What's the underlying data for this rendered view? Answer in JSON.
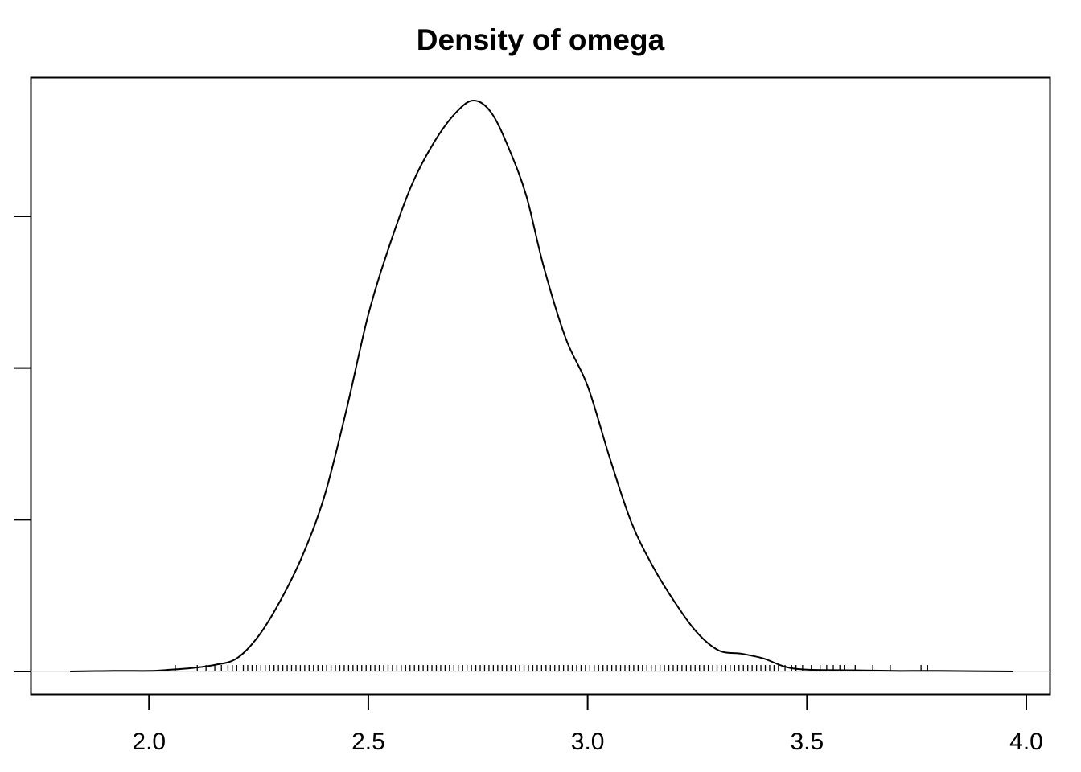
{
  "chart_data": {
    "type": "line",
    "title": "Density of omega",
    "xlabel": "",
    "ylabel": "",
    "xlim": [
      1.73,
      4.055
    ],
    "ylim": [
      0,
      1.06
    ],
    "x_ticks": [
      2.0,
      2.5,
      3.0,
      3.5,
      4.0
    ],
    "x_tick_labels": [
      "2.0",
      "2.5",
      "3.0",
      "3.5",
      "4.0"
    ],
    "y_ticks": [
      0,
      0.25,
      0.5,
      0.75
    ],
    "y_tick_labels": [
      "",
      "",
      "",
      ""
    ],
    "grid": false,
    "series": [
      {
        "x": [
          1.82,
          1.92,
          2.0,
          2.05,
          2.1,
          2.15,
          2.2,
          2.25,
          2.3,
          2.35,
          2.4,
          2.45,
          2.5,
          2.55,
          2.6,
          2.65,
          2.7,
          2.74,
          2.78,
          2.82,
          2.86,
          2.9,
          2.95,
          3.0,
          3.05,
          3.1,
          3.15,
          3.2,
          3.25,
          3.3,
          3.35,
          3.4,
          3.45,
          3.5,
          3.6,
          3.7,
          3.8,
          3.97
        ],
        "y": [
          0.0,
          0.001,
          0.001,
          0.003,
          0.006,
          0.011,
          0.022,
          0.06,
          0.12,
          0.195,
          0.295,
          0.44,
          0.6,
          0.72,
          0.82,
          0.89,
          0.94,
          0.96,
          0.94,
          0.88,
          0.8,
          0.68,
          0.56,
          0.48,
          0.36,
          0.25,
          0.175,
          0.115,
          0.065,
          0.035,
          0.03,
          0.022,
          0.008,
          0.003,
          0.002,
          0.001,
          0.001,
          0.0
        ]
      }
    ],
    "rug": [
      2.06,
      2.11,
      2.13,
      2.15,
      2.165,
      2.18,
      2.19,
      2.2,
      2.215,
      2.225,
      2.235,
      2.245,
      2.255,
      2.265,
      2.275,
      2.285,
      2.295,
      2.305,
      2.315,
      2.325,
      2.335,
      2.345,
      2.355,
      2.365,
      2.375,
      2.385,
      2.395,
      2.405,
      2.415,
      2.425,
      2.435,
      2.445,
      2.455,
      2.465,
      2.475,
      2.485,
      2.495,
      2.505,
      2.515,
      2.525,
      2.535,
      2.545,
      2.555,
      2.565,
      2.575,
      2.585,
      2.595,
      2.605,
      2.615,
      2.625,
      2.635,
      2.645,
      2.655,
      2.665,
      2.675,
      2.685,
      2.695,
      2.705,
      2.715,
      2.725,
      2.735,
      2.745,
      2.755,
      2.765,
      2.775,
      2.785,
      2.795,
      2.805,
      2.815,
      2.825,
      2.835,
      2.845,
      2.855,
      2.865,
      2.875,
      2.885,
      2.895,
      2.905,
      2.915,
      2.925,
      2.935,
      2.945,
      2.955,
      2.965,
      2.975,
      2.985,
      2.995,
      3.005,
      3.015,
      3.025,
      3.035,
      3.045,
      3.055,
      3.065,
      3.075,
      3.085,
      3.095,
      3.105,
      3.115,
      3.125,
      3.135,
      3.145,
      3.155,
      3.165,
      3.175,
      3.185,
      3.195,
      3.205,
      3.215,
      3.225,
      3.235,
      3.245,
      3.255,
      3.265,
      3.275,
      3.285,
      3.295,
      3.305,
      3.315,
      3.325,
      3.335,
      3.345,
      3.355,
      3.365,
      3.375,
      3.385,
      3.395,
      3.405,
      3.415,
      3.425,
      3.435,
      3.45,
      3.465,
      3.475,
      3.49,
      3.51,
      3.53,
      3.545,
      3.56,
      3.575,
      3.585,
      3.61,
      3.65,
      3.69,
      3.76,
      3.775
    ],
    "colors": {
      "line": "#000000",
      "baseline": "#d3d3d3",
      "frame": "#000000",
      "background": "#ffffff"
    }
  }
}
